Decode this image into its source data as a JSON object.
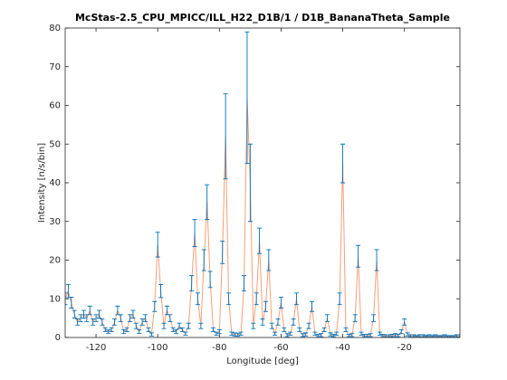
{
  "chart_data": {
    "type": "errorbar",
    "title": "McStas-2.5_CPU_MPICC/ILL_H22_D1B/1 / D1B_BananaTheta_Sample",
    "xlabel": "Longitude [deg]",
    "ylabel": "Intensity [n/s/bin]",
    "xlim": [
      -130,
      -2
    ],
    "ylim": [
      0,
      80
    ],
    "xticks": [
      -120,
      -100,
      -80,
      -60,
      -40,
      -20
    ],
    "yticks": [
      0,
      10,
      20,
      30,
      40,
      50,
      60,
      70,
      80
    ],
    "grid": false,
    "x": [
      -130,
      -129,
      -128,
      -127,
      -126,
      -125,
      -124,
      -123,
      -122,
      -121,
      -120,
      -119,
      -118,
      -117,
      -116,
      -115,
      -114,
      -113,
      -112,
      -111,
      -110,
      -109,
      -108,
      -107,
      -106,
      -105,
      -104,
      -103,
      -102,
      -101,
      -100,
      -99,
      -98,
      -97,
      -96,
      -95,
      -94,
      -93,
      -92,
      -91,
      -90,
      -89,
      -88,
      -87,
      -86,
      -85,
      -84,
      -83,
      -82,
      -81,
      -80,
      -79,
      -78,
      -77,
      -76,
      -75,
      -74,
      -73,
      -72,
      -71,
      -70,
      -69,
      -68,
      -67,
      -66,
      -65,
      -64,
      -63,
      -62,
      -61,
      -60,
      -59,
      -58,
      -57,
      -56,
      -55,
      -54,
      -53,
      -52,
      -51,
      -50,
      -49,
      -48,
      -47,
      -46,
      -45,
      -44,
      -43,
      -42,
      -41,
      -40,
      -39,
      -38,
      -37,
      -36,
      -35,
      -34,
      -33,
      -32,
      -31,
      -30,
      -29,
      -28,
      -27,
      -26,
      -25,
      -24,
      -23,
      -22,
      -21,
      -20,
      -19,
      -18,
      -17,
      -16,
      -15,
      -14,
      -13,
      -12,
      -11,
      -10,
      -9,
      -8,
      -7,
      -6,
      -5,
      -4,
      -3,
      -2
    ],
    "series": [
      {
        "color": "#0072bd",
        "line_color": "#f4a07a",
        "values": [
          10,
          12,
          9,
          6,
          4,
          5,
          6,
          5,
          7,
          4,
          5,
          6,
          4,
          2,
          1.5,
          2,
          4,
          7,
          5,
          1.5,
          2,
          5,
          6,
          3,
          1.5,
          4,
          5,
          2,
          0.8,
          8,
          24,
          12,
          3,
          7,
          5,
          2,
          1.5,
          3,
          2,
          1,
          3,
          14,
          27,
          10,
          3,
          20,
          35,
          15,
          2,
          1,
          1.5,
          22,
          52,
          10,
          1,
          0.8,
          0.7,
          1,
          14,
          62,
          40,
          3,
          10,
          25,
          4,
          8,
          20,
          3,
          1,
          4,
          9,
          2,
          0.6,
          1,
          4,
          10,
          2,
          0.6,
          0.8,
          3,
          8,
          1,
          0.5,
          0.6,
          2,
          5,
          0.8,
          0.5,
          1,
          10,
          45,
          2,
          0.5,
          0.6,
          5,
          21,
          1,
          0.5,
          0.5,
          0.6,
          5,
          20,
          1,
          0.5,
          0.4,
          0.4,
          0.5,
          0.6,
          0.5,
          1.5,
          4,
          0.8,
          0.4,
          0.4,
          0.3,
          0.4,
          0.4,
          0.3,
          0.4,
          0.3,
          0.4,
          0.3,
          0.3,
          0.4,
          0.3,
          0.3,
          0.3,
          0.4,
          0.4
        ],
        "errors": [
          1.5,
          1.7,
          1.4,
          1.0,
          0.8,
          0.9,
          1.0,
          0.9,
          1.1,
          0.8,
          0.9,
          1.0,
          0.8,
          0.5,
          0.5,
          0.5,
          0.8,
          1.1,
          0.9,
          0.5,
          0.5,
          0.9,
          1.0,
          0.7,
          0.5,
          0.8,
          0.9,
          0.5,
          0.4,
          1.3,
          3.2,
          1.7,
          0.7,
          1.1,
          0.9,
          0.5,
          0.5,
          0.7,
          0.5,
          0.4,
          0.7,
          2.0,
          3.5,
          1.5,
          0.7,
          2.7,
          4.5,
          2.1,
          0.5,
          0.4,
          0.5,
          2.9,
          11,
          1.5,
          0.4,
          0.4,
          0.4,
          0.4,
          2.0,
          17,
          10,
          0.7,
          1.5,
          3.3,
          0.8,
          1.3,
          2.7,
          0.7,
          0.4,
          0.8,
          1.4,
          0.5,
          0.4,
          0.4,
          0.8,
          1.5,
          0.5,
          0.4,
          0.4,
          0.7,
          1.3,
          0.4,
          0.3,
          0.4,
          0.5,
          0.9,
          0.4,
          0.3,
          0.4,
          1.5,
          5,
          0.5,
          0.3,
          0.4,
          0.9,
          2.8,
          0.4,
          0.3,
          0.3,
          0.4,
          0.9,
          2.7,
          0.4,
          0.3,
          0.3,
          0.3,
          0.3,
          0.4,
          0.3,
          0.5,
          0.8,
          0.4,
          0.3,
          0.3,
          0.2,
          0.3,
          0.3,
          0.2,
          0.3,
          0.2,
          0.3,
          0.2,
          0.2,
          0.3,
          0.2,
          0.2,
          0.2,
          0.3,
          0.3
        ]
      }
    ]
  }
}
